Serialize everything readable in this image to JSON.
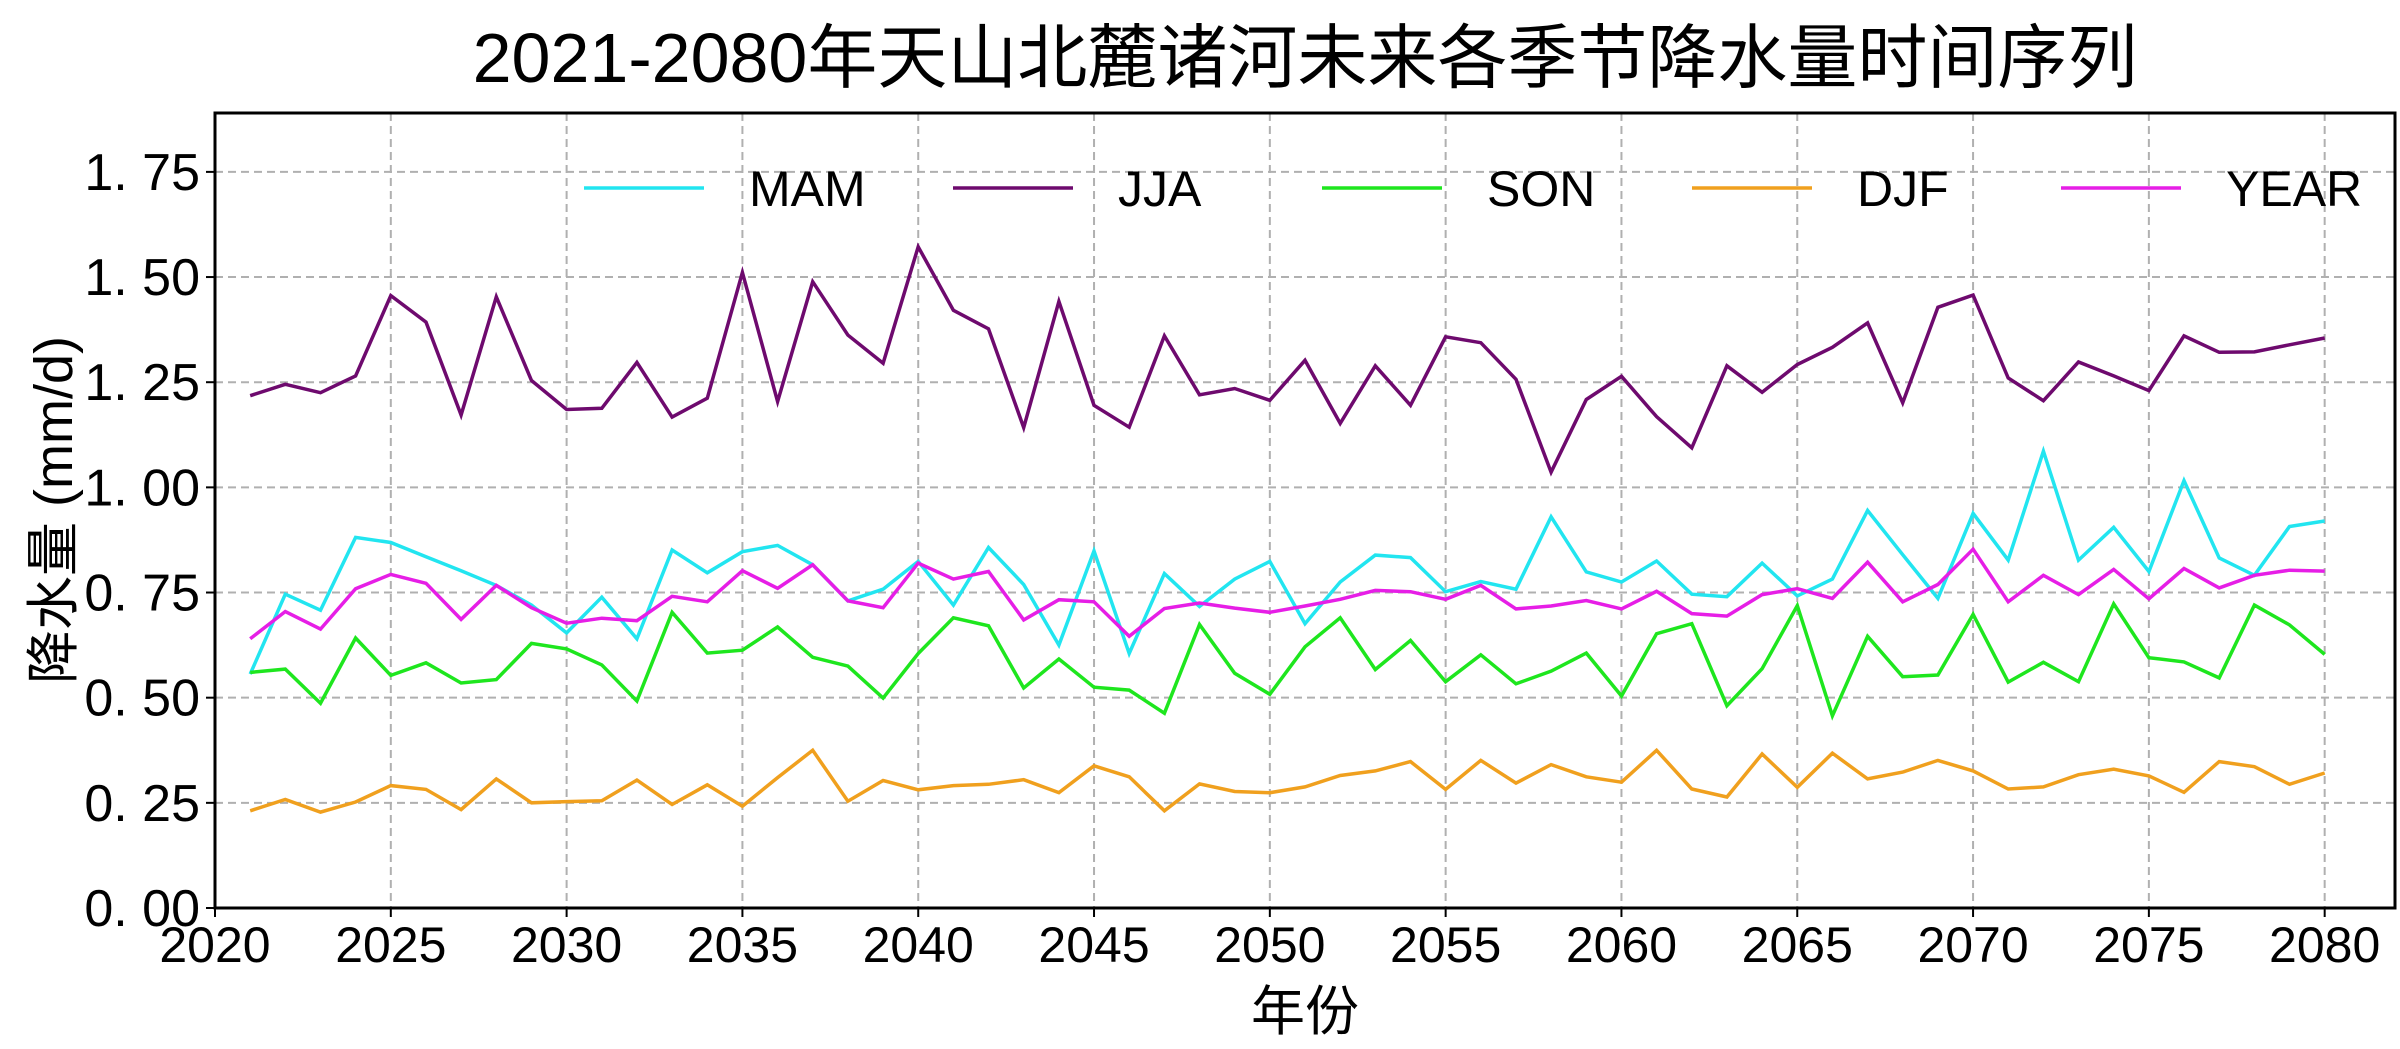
{
  "chart_data": {
    "type": "line",
    "title": "2021-2080年天山北麓诸河未来各季节降水量时间序列",
    "xlabel": "年份",
    "ylabel": "降水量 (mm/d)",
    "xlim": [
      2020,
      2082
    ],
    "ylim": [
      0,
      1.89
    ],
    "xticks": [
      2020,
      2025,
      2030,
      2035,
      2040,
      2045,
      2050,
      2055,
      2060,
      2065,
      2070,
      2075,
      2080
    ],
    "yticks": [
      0.0,
      0.25,
      0.5,
      0.75,
      1.0,
      1.25,
      1.5,
      1.75
    ],
    "ytick_labels": [
      "0. 00",
      "0. 25",
      "0. 50",
      "0. 75",
      "1. 00",
      "1. 25",
      "1. 50",
      "1. 75"
    ],
    "grid": true,
    "legend_placement": "top, single row",
    "x_start": 2021,
    "series": [
      {
        "name": "MAM",
        "color": "#22e5f0",
        "values": [
          0.556,
          0.746,
          0.708,
          0.881,
          0.869,
          0.835,
          0.802,
          0.767,
          0.72,
          0.654,
          0.739,
          0.64,
          0.851,
          0.797,
          0.847,
          0.862,
          0.816,
          0.73,
          0.758,
          0.824,
          0.72,
          0.857,
          0.769,
          0.625,
          0.849,
          0.605,
          0.795,
          0.717,
          0.782,
          0.824,
          0.676,
          0.775,
          0.839,
          0.833,
          0.752,
          0.776,
          0.758,
          0.93,
          0.799,
          0.775,
          0.825,
          0.746,
          0.74,
          0.82,
          0.742,
          0.782,
          0.945,
          0.84,
          0.736,
          0.938,
          0.827,
          1.086,
          0.827,
          0.905,
          0.8,
          1.016,
          0.832,
          0.791,
          0.907,
          0.92
        ]
      },
      {
        "name": "JJA",
        "color": "#6e0a6e",
        "values": [
          1.218,
          1.245,
          1.225,
          1.265,
          1.456,
          1.393,
          1.172,
          1.453,
          1.254,
          1.185,
          1.188,
          1.297,
          1.167,
          1.212,
          1.511,
          1.204,
          1.489,
          1.362,
          1.295,
          1.572,
          1.421,
          1.377,
          1.142,
          1.442,
          1.195,
          1.143,
          1.36,
          1.22,
          1.235,
          1.207,
          1.302,
          1.152,
          1.289,
          1.195,
          1.358,
          1.344,
          1.257,
          1.036,
          1.209,
          1.264,
          1.168,
          1.094,
          1.289,
          1.226,
          1.292,
          1.333,
          1.391,
          1.201,
          1.428,
          1.457,
          1.26,
          1.206,
          1.298,
          1.265,
          1.23,
          1.36,
          1.321,
          1.322,
          1.339,
          1.355
        ]
      },
      {
        "name": "SON",
        "color": "#1ee61e",
        "values": [
          0.56,
          0.568,
          0.487,
          0.642,
          0.553,
          0.583,
          0.535,
          0.543,
          0.629,
          0.616,
          0.578,
          0.492,
          0.703,
          0.606,
          0.613,
          0.668,
          0.596,
          0.575,
          0.499,
          0.605,
          0.69,
          0.671,
          0.523,
          0.592,
          0.525,
          0.518,
          0.463,
          0.674,
          0.558,
          0.508,
          0.621,
          0.69,
          0.567,
          0.636,
          0.538,
          0.602,
          0.533,
          0.563,
          0.606,
          0.504,
          0.652,
          0.676,
          0.481,
          0.569,
          0.719,
          0.457,
          0.646,
          0.55,
          0.554,
          0.698,
          0.537,
          0.584,
          0.538,
          0.723,
          0.595,
          0.585,
          0.547,
          0.72,
          0.673,
          0.603
        ]
      },
      {
        "name": "DJF",
        "color": "#f0a01e",
        "values": [
          0.231,
          0.258,
          0.228,
          0.252,
          0.291,
          0.282,
          0.234,
          0.307,
          0.25,
          0.253,
          0.255,
          0.304,
          0.246,
          0.293,
          0.242,
          0.31,
          0.375,
          0.254,
          0.303,
          0.281,
          0.291,
          0.294,
          0.305,
          0.274,
          0.338,
          0.312,
          0.231,
          0.295,
          0.277,
          0.274,
          0.288,
          0.315,
          0.326,
          0.348,
          0.282,
          0.351,
          0.297,
          0.341,
          0.312,
          0.299,
          0.375,
          0.283,
          0.264,
          0.366,
          0.287,
          0.368,
          0.307,
          0.323,
          0.351,
          0.326,
          0.283,
          0.288,
          0.317,
          0.33,
          0.314,
          0.275,
          0.348,
          0.336,
          0.294,
          0.321
        ]
      },
      {
        "name": "YEAR",
        "color": "#e61ee6",
        "values": [
          0.64,
          0.705,
          0.663,
          0.759,
          0.793,
          0.772,
          0.686,
          0.767,
          0.714,
          0.677,
          0.689,
          0.683,
          0.741,
          0.728,
          0.802,
          0.76,
          0.816,
          0.73,
          0.714,
          0.82,
          0.782,
          0.8,
          0.685,
          0.733,
          0.728,
          0.646,
          0.712,
          0.725,
          0.713,
          0.703,
          0.718,
          0.734,
          0.755,
          0.752,
          0.734,
          0.767,
          0.711,
          0.718,
          0.731,
          0.711,
          0.753,
          0.7,
          0.694,
          0.745,
          0.759,
          0.736,
          0.822,
          0.728,
          0.769,
          0.853,
          0.728,
          0.791,
          0.745,
          0.805,
          0.735,
          0.807,
          0.761,
          0.791,
          0.803,
          0.801
        ]
      }
    ]
  }
}
